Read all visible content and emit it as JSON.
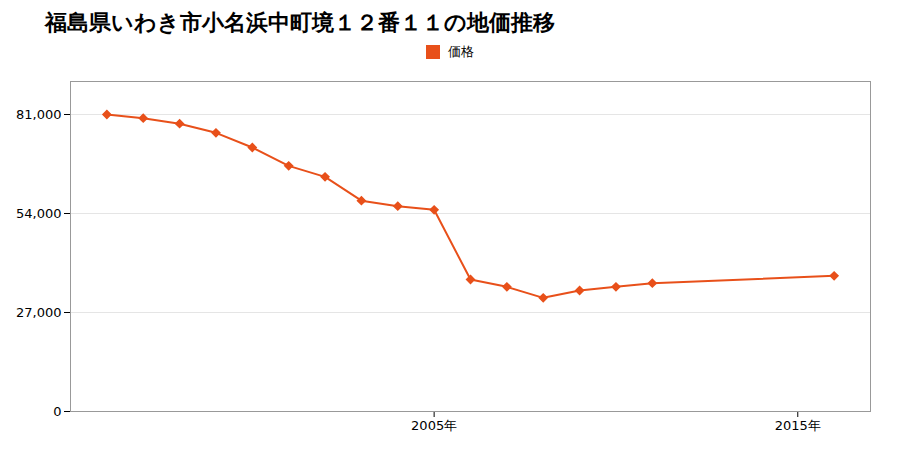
{
  "chart_data": {
    "type": "line",
    "title": "福島県いわき市小名浜中町境１２番１１の地価推移",
    "x": [
      1996,
      1997,
      1998,
      1999,
      2000,
      2001,
      2002,
      2003,
      2004,
      2005,
      2006,
      2007,
      2008,
      2009,
      2010,
      2011,
      2016
    ],
    "series": [
      {
        "name": "価格",
        "color": "#e8501a",
        "marker": "diamond",
        "values": [
          81000,
          80000,
          78500,
          76000,
          72000,
          67000,
          64000,
          57500,
          56000,
          55000,
          36000,
          34000,
          31000,
          33000,
          34000,
          35000,
          37000
        ]
      }
    ],
    "xlim": [
      1995,
      2017
    ],
    "xticks": [
      {
        "value": 2005,
        "label": "2005年"
      },
      {
        "value": 2015,
        "label": "2015年"
      }
    ],
    "ylim": [
      0,
      90000
    ],
    "yticks": [
      0,
      {
        "value": 27000,
        "label": "27,000"
      },
      {
        "value": 54000,
        "label": "54,000"
      },
      {
        "value": 81000,
        "label": "81,000"
      }
    ],
    "grid": "y",
    "legend": "top"
  }
}
